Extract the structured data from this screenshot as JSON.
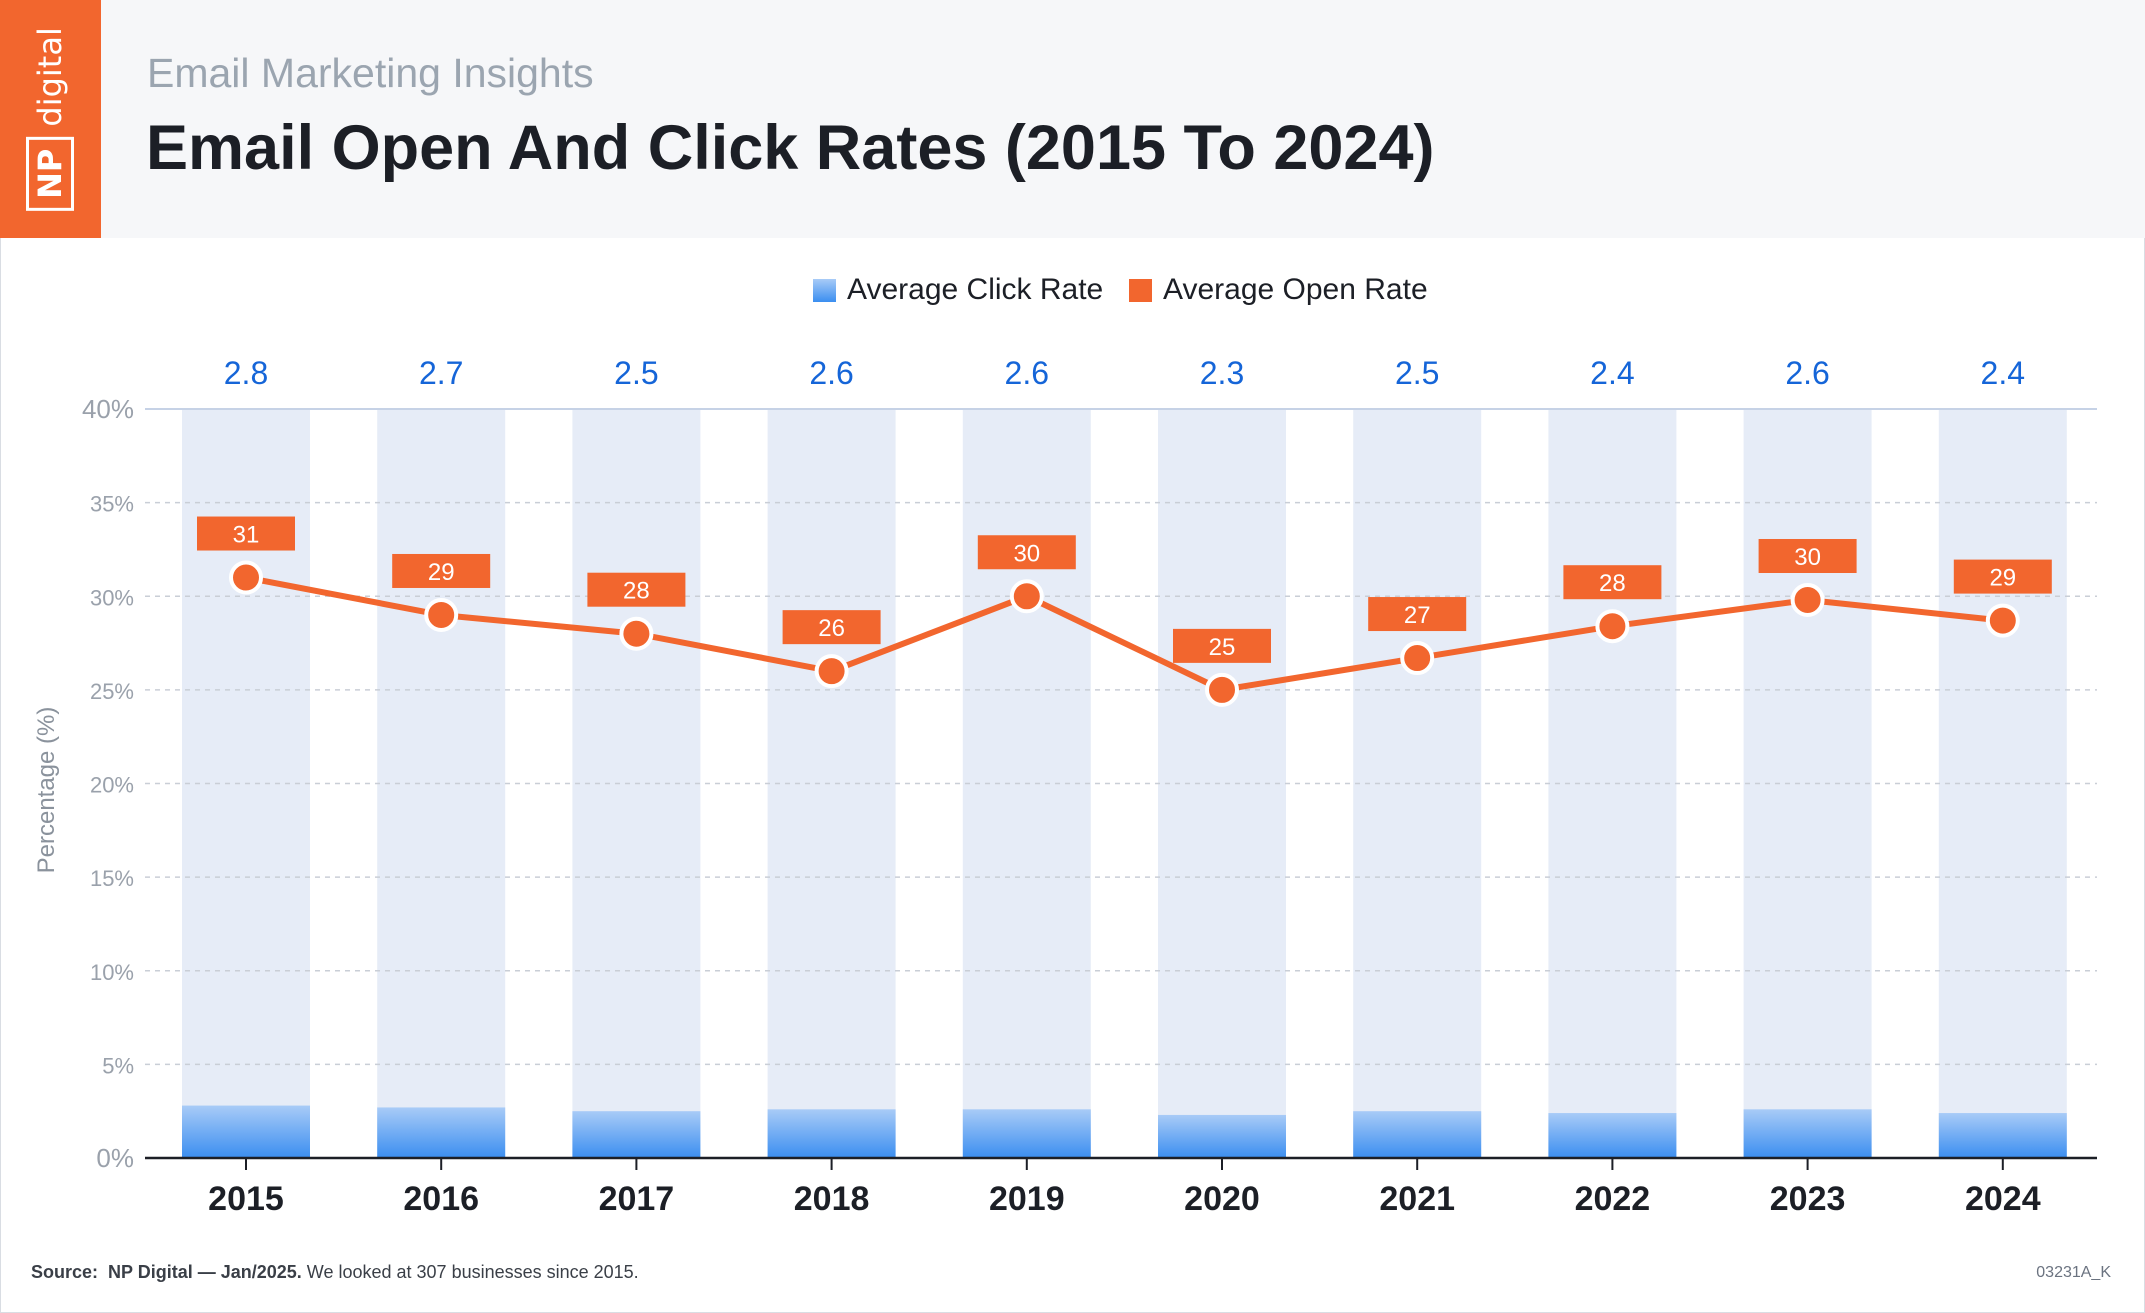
{
  "header": {
    "subtitle": "Email Marketing Insights",
    "title": "Email Open And Click Rates (2015 To 2024)",
    "logo_np": "NP",
    "logo_word": "digital"
  },
  "colors": {
    "brand_orange": "#f2662e",
    "click_blue_top": "#a8cbf7",
    "click_blue_bottom": "#3b8ef0",
    "column_background": "#e6ecf7",
    "value_blue": "#1565d8"
  },
  "chart_data": {
    "type": "bar",
    "categories": [
      "2015",
      "2016",
      "2017",
      "2018",
      "2019",
      "2020",
      "2021",
      "2022",
      "2023",
      "2024"
    ],
    "series": [
      {
        "name": "Average Click Rate",
        "type": "bar",
        "values": [
          2.8,
          2.7,
          2.5,
          2.6,
          2.6,
          2.3,
          2.5,
          2.4,
          2.6,
          2.4
        ],
        "labels": [
          "2.8",
          "2.7",
          "2.5",
          "2.6",
          "2.6",
          "2.3",
          "2.5",
          "2.4",
          "2.6",
          "2.4"
        ]
      },
      {
        "name": "Average Open Rate",
        "type": "line",
        "values": [
          31,
          29,
          28,
          26,
          30,
          25,
          26.7,
          28.4,
          29.8,
          28.7
        ],
        "labels": [
          "31",
          "29",
          "28",
          "26",
          "30",
          "25",
          "27",
          "28",
          "30",
          "29"
        ]
      }
    ],
    "ylabel": "Percentage (%)",
    "ylim": [
      0,
      40
    ],
    "yticks": [
      "0%",
      "5%",
      "10%",
      "15%",
      "20%",
      "25%",
      "30%",
      "35%",
      "40%"
    ],
    "grid": true,
    "legend_position": "top-center"
  },
  "footer": {
    "source_label": "Source:",
    "source_name": "NP Digital — Jan/2025.",
    "source_note": " We looked at 307 businesses since 2015.",
    "code": "03231A_K"
  }
}
